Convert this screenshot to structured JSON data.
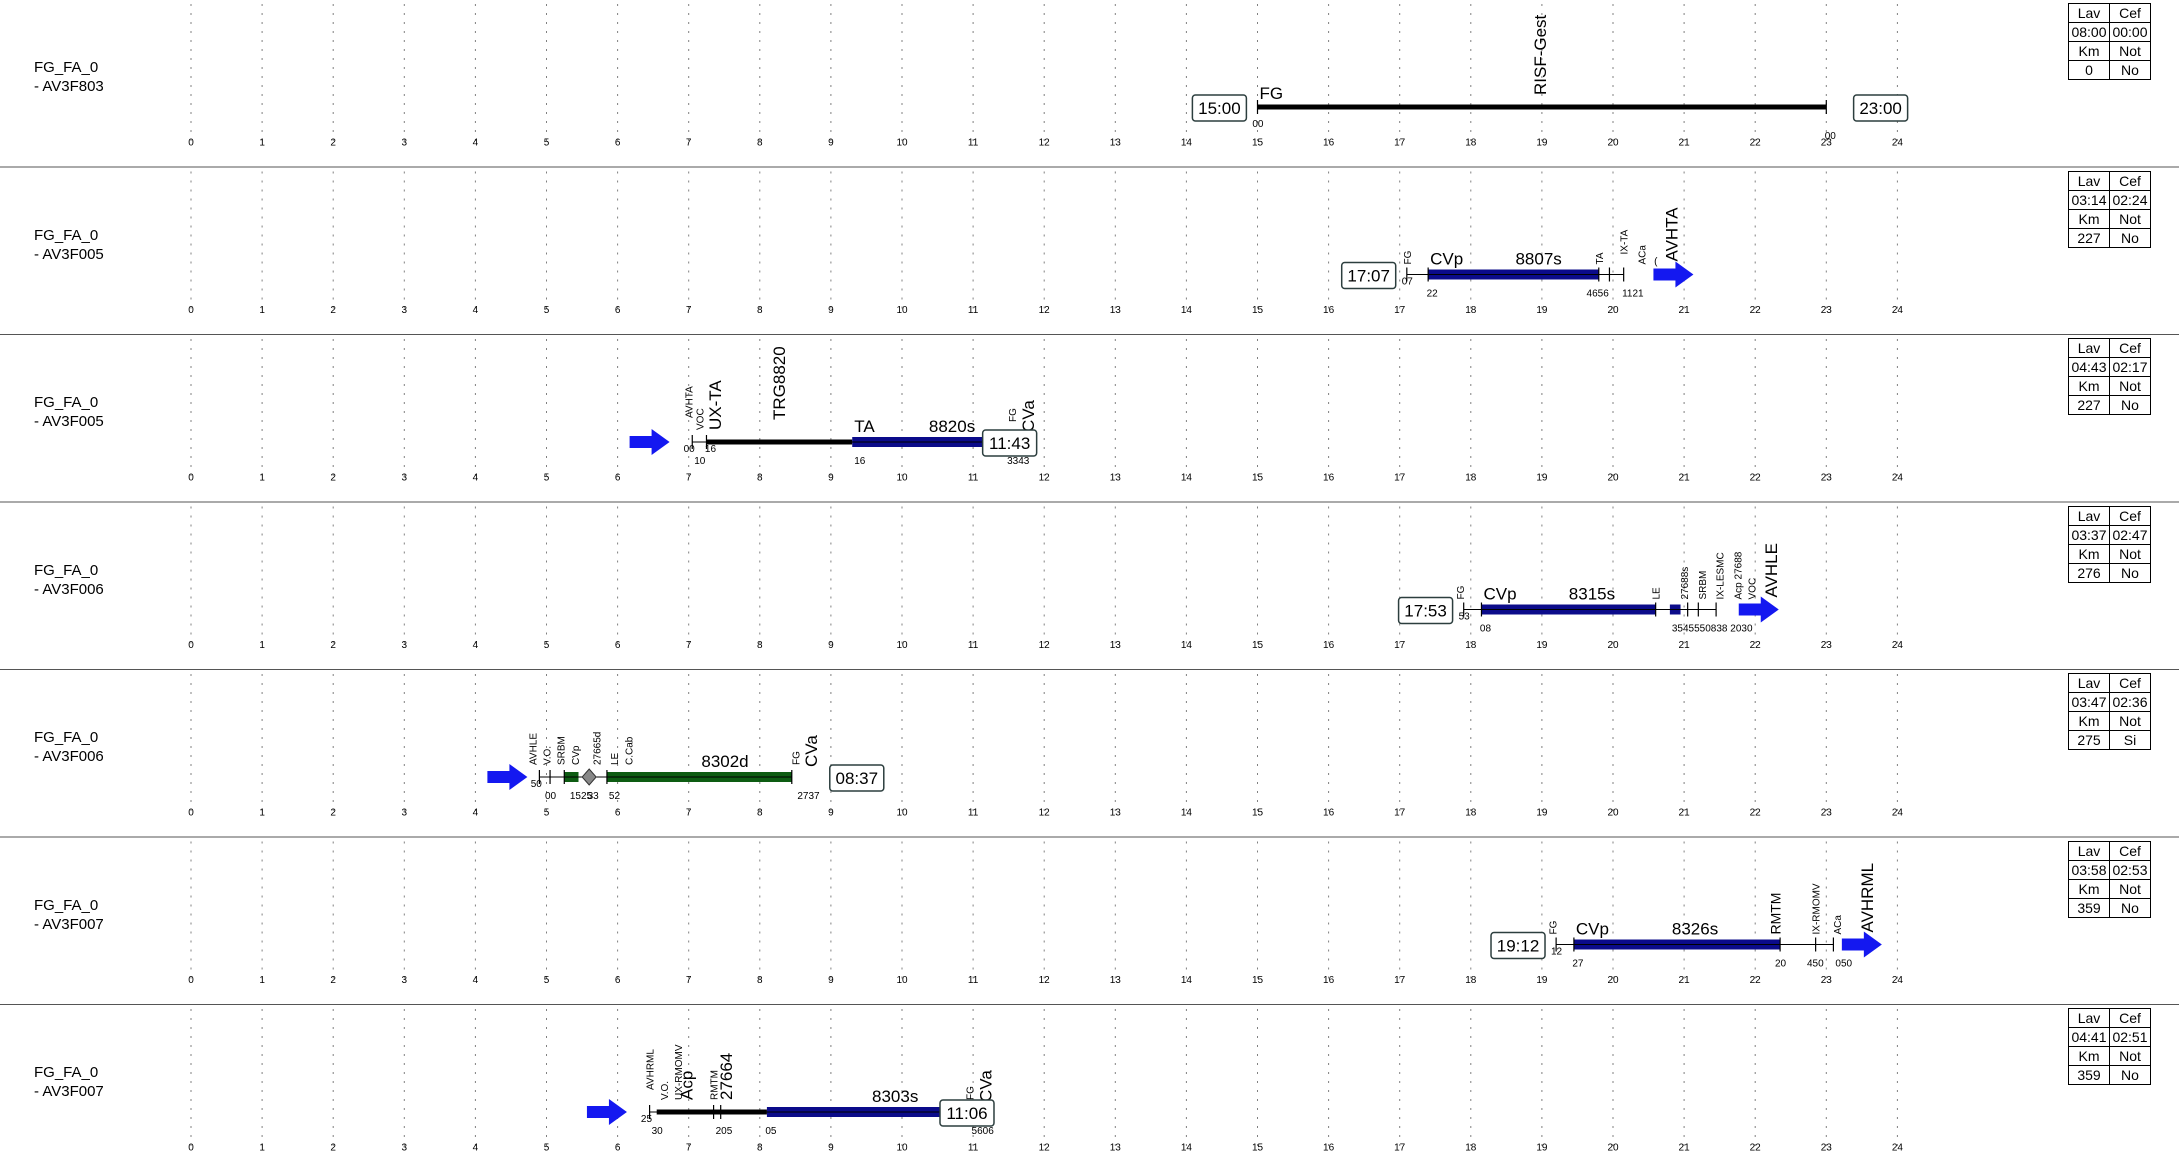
{
  "hours": [
    "0",
    "1",
    "2",
    "3",
    "4",
    "5",
    "6",
    "7",
    "8",
    "9",
    "10",
    "11",
    "12",
    "13",
    "14",
    "15",
    "16",
    "17",
    "18",
    "19",
    "20",
    "21",
    "22",
    "23",
    "24"
  ],
  "colors": {
    "service_bar": "#0b0b8a",
    "deadhead_bar": "#000000",
    "alt_service_bar": "#0d5c12",
    "arrow": "#1418f0",
    "grid": "#808080"
  },
  "rows": [
    {
      "label_line1": "FG_FA_0",
      "label_line2": "- AV3F803",
      "summary": [
        [
          "Lav",
          "Cef"
        ],
        [
          "08:00",
          "00:00"
        ],
        [
          "Km",
          "Not"
        ],
        [
          "0",
          "No"
        ]
      ],
      "time_boxes": [
        {
          "text": "15:00",
          "h": 14.45
        },
        {
          "text": "23:00",
          "h": 23.75
        }
      ],
      "segments": [
        {
          "kind": "black",
          "from": 15.0,
          "to": 23.0
        }
      ],
      "ticks": [
        15.0,
        23.0
      ],
      "texts": [
        {
          "text": "FG",
          "h": 15.0,
          "dy": 0,
          "size": 17,
          "rot": false
        },
        {
          "text": "RISF-Gest",
          "h": 19.0,
          "dy": -4,
          "size": 17,
          "rot": true
        },
        {
          "text": "00",
          "h": 14.9,
          "dy": 28,
          "size": 10,
          "rot": false
        },
        {
          "text": "00",
          "h": 22.95,
          "dy": 40,
          "size": 10,
          "rot": false
        }
      ],
      "arrows": []
    },
    {
      "label_line1": "FG_FA_0",
      "label_line2": "- AV3F005",
      "summary": [
        [
          "Lav",
          "Cef"
        ],
        [
          "03:14",
          "02:24"
        ],
        [
          "Km",
          "Not"
        ],
        [
          "227",
          "No"
        ]
      ],
      "time_boxes": [
        {
          "text": "17:07",
          "h": 16.55
        }
      ],
      "segments": [
        {
          "kind": "blue",
          "from": 17.4,
          "to": 19.8
        }
      ],
      "ticks": [
        17.1,
        17.4,
        19.8,
        19.95,
        20.15
      ],
      "texts": [
        {
          "text": "FG",
          "h": 17.1,
          "dy": -2,
          "size": 10,
          "rot": true
        },
        {
          "text": "CVp",
          "h": 17.4,
          "dy": -2,
          "size": 17,
          "rot": false
        },
        {
          "text": "8807s",
          "h": 18.6,
          "dy": -2,
          "size": 17,
          "rot": false
        },
        {
          "text": "TA",
          "h": 19.8,
          "dy": -2,
          "size": 10,
          "rot": true
        },
        {
          "text": "IX-TA",
          "h": 20.15,
          "dy": -12,
          "size": 10,
          "rot": true
        },
        {
          "text": "ACa",
          "h": 20.4,
          "dy": -2,
          "size": 10,
          "rot": true
        },
        {
          "text": "AVHTA",
          "h": 20.85,
          "dy": -5,
          "size": 17,
          "rot": true
        },
        {
          "text": "(",
          "h": 20.55,
          "dy": -2,
          "size": 10,
          "rot": false
        },
        {
          "text": "07",
          "h": 17.0,
          "dy": 18,
          "size": 10,
          "rot": false
        },
        {
          "text": "22",
          "h": 17.35,
          "dy": 30,
          "size": 10,
          "rot": false
        },
        {
          "text": "4656",
          "h": 19.6,
          "dy": 30,
          "size": 10,
          "rot": false
        },
        {
          "text": "1121",
          "h": 20.1,
          "dy": 30,
          "size": 10,
          "rot": false
        }
      ],
      "arrows": [
        {
          "h": 20.85
        }
      ]
    },
    {
      "label_line1": "FG_FA_0",
      "label_line2": "- AV3F005",
      "summary": [
        [
          "Lav",
          "Cef"
        ],
        [
          "04:43",
          "02:17"
        ],
        [
          "Km",
          "Not"
        ],
        [
          "227",
          "No"
        ]
      ],
      "time_boxes": [
        {
          "text": "11:43",
          "h": 11.5
        }
      ],
      "segments": [
        {
          "kind": "black",
          "from": 7.25,
          "to": 9.3
        },
        {
          "kind": "blue",
          "from": 9.3,
          "to": 11.6
        }
      ],
      "ticks": [
        7.05,
        7.25,
        11.6
      ],
      "texts": [
        {
          "text": "AVHTA",
          "h": 7.0,
          "dy": -16,
          "size": 10,
          "rot": true
        },
        {
          "text": "VOC",
          "h": 7.15,
          "dy": -4,
          "size": 10,
          "rot": true
        },
        {
          "text": "UX-TA",
          "h": 7.4,
          "dy": -4,
          "size": 17,
          "rot": true
        },
        {
          "text": "TRG8820",
          "h": 8.3,
          "dy": -14,
          "size": 17,
          "rot": true
        },
        {
          "text": "TA",
          "h": 9.3,
          "dy": -2,
          "size": 17,
          "rot": false
        },
        {
          "text": "8820s",
          "h": 10.35,
          "dy": -2,
          "size": 17,
          "rot": false
        },
        {
          "text": "FG",
          "h": 11.55,
          "dy": -12,
          "size": 10,
          "rot": true
        },
        {
          "text": "CVa",
          "h": 11.8,
          "dy": -2,
          "size": 17,
          "rot": true
        },
        {
          "text": "00",
          "h": 6.9,
          "dy": 18,
          "size": 10,
          "rot": false
        },
        {
          "text": "16",
          "h": 7.2,
          "dy": 18,
          "size": 10,
          "rot": false
        },
        {
          "text": "10",
          "h": 7.05,
          "dy": 30,
          "size": 10,
          "rot": false
        },
        {
          "text": "16",
          "h": 9.3,
          "dy": 30,
          "size": 10,
          "rot": false
        },
        {
          "text": "3343",
          "h": 11.45,
          "dy": 30,
          "size": 10,
          "rot": false
        }
      ],
      "arrows": [
        {
          "h": 6.45
        }
      ]
    },
    {
      "label_line1": "FG_FA_0",
      "label_line2": "- AV3F006",
      "summary": [
        [
          "Lav",
          "Cef"
        ],
        [
          "03:37",
          "02:47"
        ],
        [
          "Km",
          "Not"
        ],
        [
          "276",
          "No"
        ]
      ],
      "time_boxes": [
        {
          "text": "17:53",
          "h": 17.35
        }
      ],
      "segments": [
        {
          "kind": "blue",
          "from": 18.15,
          "to": 20.6
        },
        {
          "kind": "blue",
          "from": 20.8,
          "to": 20.95
        }
      ],
      "ticks": [
        17.9,
        18.15,
        20.6,
        21.05,
        21.2,
        21.45
      ],
      "texts": [
        {
          "text": "FG",
          "h": 17.85,
          "dy": -2,
          "size": 10,
          "rot": true
        },
        {
          "text": "CVp",
          "h": 18.15,
          "dy": -2,
          "size": 17,
          "rot": false
        },
        {
          "text": "8315s",
          "h": 19.35,
          "dy": -2,
          "size": 17,
          "rot": false
        },
        {
          "text": "LE",
          "h": 20.6,
          "dy": -2,
          "size": 10,
          "rot": true
        },
        {
          "text": "27688s",
          "h": 21.0,
          "dy": -2,
          "size": 10,
          "rot": true
        },
        {
          "text": "SRBM",
          "h": 21.25,
          "dy": -2,
          "size": 10,
          "rot": true
        },
        {
          "text": "IX-LESMC",
          "h": 21.5,
          "dy": -2,
          "size": 10,
          "rot": true
        },
        {
          "text": "Acp 27688",
          "h": 21.75,
          "dy": -2,
          "size": 10,
          "rot": true
        },
        {
          "text": "VOC",
          "h": 21.95,
          "dy": -2,
          "size": 10,
          "rot": true
        },
        {
          "text": "AVHLE",
          "h": 22.25,
          "dy": -4,
          "size": 17,
          "rot": true
        },
        {
          "text": "53",
          "h": 17.8,
          "dy": 18,
          "size": 10,
          "rot": false
        },
        {
          "text": "08",
          "h": 18.1,
          "dy": 30,
          "size": 10,
          "rot": false
        },
        {
          "text": "3545550838 2030",
          "h": 20.8,
          "dy": 30,
          "size": 10,
          "rot": false
        }
      ],
      "arrows": [
        {
          "h": 22.05
        }
      ]
    },
    {
      "label_line1": "FG_FA_0",
      "label_line2": "- AV3F006",
      "summary": [
        [
          "Lav",
          "Cef"
        ],
        [
          "03:47",
          "02:36"
        ],
        [
          "Km",
          "Not"
        ],
        [
          "275",
          "Si"
        ]
      ],
      "time_boxes": [
        {
          "text": "08:37",
          "h": 9.35
        }
      ],
      "segments": [
        {
          "kind": "green",
          "from": 5.25,
          "to": 5.45
        },
        {
          "kind": "green",
          "from": 5.85,
          "to": 8.45
        }
      ],
      "ticks": [
        4.9,
        5.05,
        5.25,
        5.85,
        8.45
      ],
      "texts": [
        {
          "text": "AVHLE",
          "h": 4.8,
          "dy": -4,
          "size": 10,
          "rot": true
        },
        {
          "text": "V.O.",
          "h": 5.0,
          "dy": -4,
          "size": 10,
          "rot": true
        },
        {
          "text": "SRBM",
          "h": 5.2,
          "dy": -4,
          "size": 10,
          "rot": true
        },
        {
          "text": "CVp",
          "h": 5.4,
          "dy": -4,
          "size": 10,
          "rot": true
        },
        {
          "text": "27665d",
          "h": 5.7,
          "dy": -4,
          "size": 10,
          "rot": true
        },
        {
          "text": "LE",
          "h": 5.95,
          "dy": -4,
          "size": 10,
          "rot": true
        },
        {
          "text": "C.Cab",
          "h": 6.15,
          "dy": -4,
          "size": 10,
          "rot": true
        },
        {
          "text": "8302d",
          "h": 7.15,
          "dy": -2,
          "size": 17,
          "rot": false
        },
        {
          "text": "FG",
          "h": 8.5,
          "dy": -4,
          "size": 10,
          "rot": true
        },
        {
          "text": "CVa",
          "h": 8.75,
          "dy": -2,
          "size": 17,
          "rot": true
        },
        {
          "text": "50",
          "h": 4.75,
          "dy": 18,
          "size": 10,
          "rot": false
        },
        {
          "text": "00",
          "h": 4.95,
          "dy": 30,
          "size": 10,
          "rot": false
        },
        {
          "text": "1525",
          "h": 5.3,
          "dy": 30,
          "size": 10,
          "rot": false
        },
        {
          "text": "33",
          "h": 5.55,
          "dy": 30,
          "size": 10,
          "rot": false
        },
        {
          "text": "52",
          "h": 5.85,
          "dy": 30,
          "size": 10,
          "rot": false
        },
        {
          "text": "2737",
          "h": 8.5,
          "dy": 30,
          "size": 10,
          "rot": false
        }
      ],
      "diamond": {
        "h": 5.6
      },
      "arrows": [
        {
          "h": 4.45
        }
      ]
    },
    {
      "label_line1": "FG_FA_0",
      "label_line2": "- AV3F007",
      "summary": [
        [
          "Lav",
          "Cef"
        ],
        [
          "03:58",
          "02:53"
        ],
        [
          "Km",
          "Not"
        ],
        [
          "359",
          "No"
        ]
      ],
      "time_boxes": [
        {
          "text": "19:12",
          "h": 18.65
        }
      ],
      "segments": [
        {
          "kind": "blue",
          "from": 19.45,
          "to": 22.35
        }
      ],
      "ticks": [
        19.2,
        19.45,
        22.35,
        22.85,
        23.1
      ],
      "texts": [
        {
          "text": "FG",
          "h": 19.15,
          "dy": -2,
          "size": 10,
          "rot": true
        },
        {
          "text": "CVp",
          "h": 19.45,
          "dy": -2,
          "size": 17,
          "rot": false
        },
        {
          "text": "8326s",
          "h": 20.8,
          "dy": -2,
          "size": 17,
          "rot": false
        },
        {
          "text": "RMTM",
          "h": 22.3,
          "dy": -2,
          "size": 14,
          "rot": true
        },
        {
          "text": "IX-RMOMV",
          "h": 22.85,
          "dy": -2,
          "size": 10,
          "rot": true
        },
        {
          "text": "ACa",
          "h": 23.15,
          "dy": -2,
          "size": 10,
          "rot": true
        },
        {
          "text": "AVHRML",
          "h": 23.6,
          "dy": -4,
          "size": 17,
          "rot": true
        },
        {
          "text": "12",
          "h": 19.1,
          "dy": 18,
          "size": 10,
          "rot": false
        },
        {
          "text": "27",
          "h": 19.4,
          "dy": 30,
          "size": 10,
          "rot": false
        },
        {
          "text": "20",
          "h": 22.25,
          "dy": 30,
          "size": 10,
          "rot": false
        },
        {
          "text": "450",
          "h": 22.7,
          "dy": 30,
          "size": 10,
          "rot": false
        },
        {
          "text": "050",
          "h": 23.1,
          "dy": 30,
          "size": 10,
          "rot": false
        }
      ],
      "arrows": [
        {
          "h": 23.5
        }
      ]
    },
    {
      "label_line1": "FG_FA_0",
      "label_line2": "- AV3F007",
      "summary": [
        [
          "Lav",
          "Cef"
        ],
        [
          "04:41",
          "02:51"
        ],
        [
          "Km",
          "Not"
        ],
        [
          "359",
          "No"
        ]
      ],
      "time_boxes": [
        {
          "text": "11:06",
          "h": 10.9
        }
      ],
      "segments": [
        {
          "kind": "black",
          "from": 6.55,
          "to": 8.1
        },
        {
          "kind": "blue",
          "from": 8.1,
          "to": 11.0
        }
      ],
      "ticks": [
        6.45,
        7.35,
        7.45,
        11.0
      ],
      "texts": [
        {
          "text": "AVHRML",
          "h": 6.45,
          "dy": -14,
          "size": 10,
          "rot": true
        },
        {
          "text": "V.O.",
          "h": 6.65,
          "dy": -4,
          "size": 10,
          "rot": true
        },
        {
          "text": "UX-RMOMV",
          "h": 6.85,
          "dy": -4,
          "size": 10,
          "rot": true
        },
        {
          "text": "Acp",
          "h": 7.0,
          "dy": -4,
          "size": 17,
          "rot": true
        },
        {
          "text": "RMTM",
          "h": 7.35,
          "dy": -4,
          "size": 10,
          "rot": true
        },
        {
          "text": "27664",
          "h": 7.55,
          "dy": -4,
          "size": 17,
          "rot": true
        },
        {
          "text": "8303s",
          "h": 9.55,
          "dy": -2,
          "size": 17,
          "rot": false
        },
        {
          "text": "FG",
          "h": 10.95,
          "dy": -4,
          "size": 10,
          "rot": true
        },
        {
          "text": "CVa",
          "h": 11.2,
          "dy": -2,
          "size": 17,
          "rot": true
        },
        {
          "text": "25",
          "h": 6.3,
          "dy": 18,
          "size": 10,
          "rot": false
        },
        {
          "text": "30",
          "h": 6.45,
          "dy": 30,
          "size": 10,
          "rot": false
        },
        {
          "text": "205",
          "h": 7.35,
          "dy": 30,
          "size": 10,
          "rot": false
        },
        {
          "text": "05",
          "h": 8.05,
          "dy": 30,
          "size": 10,
          "rot": false
        },
        {
          "text": "5606",
          "h": 10.95,
          "dy": 30,
          "size": 10,
          "rot": false
        }
      ],
      "arrows": [
        {
          "h": 5.85
        }
      ]
    }
  ]
}
